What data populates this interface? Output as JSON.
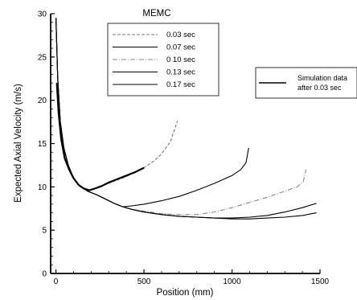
{
  "chart_data": {
    "type": "line",
    "title": "MEMC",
    "xlabel": "Position (mm)",
    "ylabel": "Expected Axial Velocity (m/s)",
    "xlim": [
      -30,
      1500
    ],
    "ylim": [
      0,
      30
    ],
    "xticks": [
      0,
      500,
      1000,
      1500
    ],
    "yticks": [
      0,
      5,
      10,
      15,
      20,
      25,
      30
    ],
    "xtick_labels": [
      "0",
      "500",
      "1000",
      "1500"
    ],
    "ytick_labels": [
      "0",
      "5",
      "10",
      "15",
      "20",
      "25",
      "30"
    ],
    "grid": false,
    "legend_position": "top-center",
    "series": [
      {
        "name": "0.03 sec",
        "color": "#777777",
        "dash": "4,2",
        "x": [
          0,
          10,
          25,
          45,
          70,
          100,
          140,
          180,
          220,
          260,
          300,
          350,
          400,
          450,
          500,
          550,
          600,
          650,
          690
        ],
        "y": [
          29.5,
          22.5,
          17.5,
          14.5,
          12.5,
          11,
          10,
          9.6,
          9.8,
          10.1,
          10.4,
          10.8,
          11.2,
          11.7,
          12.2,
          12.9,
          13.8,
          15.2,
          17.6
        ]
      },
      {
        "name": "0.07 sec",
        "color": "#000000",
        "dash": "",
        "x": [
          0,
          10,
          25,
          45,
          70,
          100,
          140,
          180,
          230,
          280,
          330,
          380,
          430,
          500,
          600,
          700,
          800,
          900,
          1000,
          1050,
          1080,
          1095
        ],
        "y": [
          29.5,
          22.5,
          17.5,
          14.5,
          12.5,
          11,
          10,
          9.5,
          9.1,
          8.6,
          8.1,
          7.7,
          7.8,
          8,
          8.4,
          8.9,
          9.6,
          10.4,
          11.3,
          12,
          12.8,
          14.5
        ]
      },
      {
        "name": "0 10 sec",
        "color": "#888888",
        "dash": "6,2,1,2",
        "x": [
          0,
          10,
          25,
          45,
          70,
          100,
          140,
          180,
          230,
          280,
          330,
          380,
          430,
          500,
          600,
          700,
          800,
          900,
          1000,
          1100,
          1200,
          1300,
          1370,
          1405,
          1420
        ],
        "y": [
          29.5,
          22.5,
          17.5,
          14.5,
          12.5,
          11,
          10,
          9.5,
          9.1,
          8.6,
          8.1,
          7.7,
          7.4,
          7.2,
          6.9,
          6.8,
          6.8,
          7.1,
          7.6,
          8.2,
          8.8,
          9.5,
          10,
          10.6,
          12
        ]
      },
      {
        "name": "0.13 sec",
        "color": "#000000",
        "dash": "",
        "x": [
          0,
          10,
          25,
          45,
          70,
          100,
          140,
          180,
          230,
          280,
          330,
          380,
          430,
          500,
          600,
          700,
          800,
          900,
          1000,
          1100,
          1200,
          1300,
          1400,
          1480
        ],
        "y": [
          29.5,
          22.5,
          17.5,
          14.5,
          12.5,
          11,
          10,
          9.5,
          9.1,
          8.6,
          8.1,
          7.7,
          7.4,
          7.1,
          6.8,
          6.6,
          6.5,
          6.4,
          6.4,
          6.5,
          6.7,
          7.1,
          7.6,
          8.1
        ]
      },
      {
        "name": "0.17 sec",
        "color": "#000000",
        "dash": "",
        "x": [
          0,
          10,
          25,
          45,
          70,
          100,
          140,
          180,
          230,
          280,
          330,
          380,
          430,
          500,
          600,
          700,
          800,
          900,
          1000,
          1100,
          1200,
          1300,
          1400,
          1480
        ],
        "y": [
          29.5,
          22.5,
          17.5,
          14.5,
          12.5,
          11,
          10,
          9.5,
          9.1,
          8.6,
          8.1,
          7.7,
          7.4,
          7.1,
          6.8,
          6.6,
          6.5,
          6.4,
          6.3,
          6.3,
          6.4,
          6.5,
          6.7,
          7
        ]
      },
      {
        "name": "Simulation data after 0.03 sec",
        "color": "#000000",
        "dash": "",
        "x": [
          5,
          15,
          30,
          50,
          75,
          100,
          130,
          160,
          190,
          220,
          260,
          300,
          350,
          400,
          450,
          500
        ],
        "y": [
          22,
          18.5,
          15.5,
          13.3,
          12,
          11,
          10.2,
          9.8,
          9.6,
          9.8,
          10.1,
          10.5,
          10.9,
          11.3,
          11.7,
          12.2
        ]
      }
    ],
    "legend_entries": [
      "0.03 sec",
      "0.07 sec",
      "0 10 sec",
      "0.13 sec",
      "0.17 sec"
    ],
    "annotation": {
      "line1": "Simulation data",
      "line2": "after 0.03 sec"
    }
  }
}
